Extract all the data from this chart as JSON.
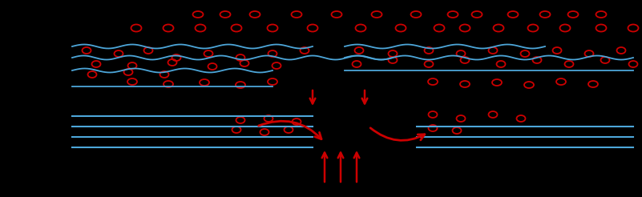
{
  "bg_color": "#000000",
  "bubble_color": "#cc0000",
  "wave_color": "#4da6d9",
  "arrow_color": "#cc0000",
  "line_color": "#4da6d9",
  "figsize": [
    8.01,
    2.46
  ],
  "dpi": 100
}
